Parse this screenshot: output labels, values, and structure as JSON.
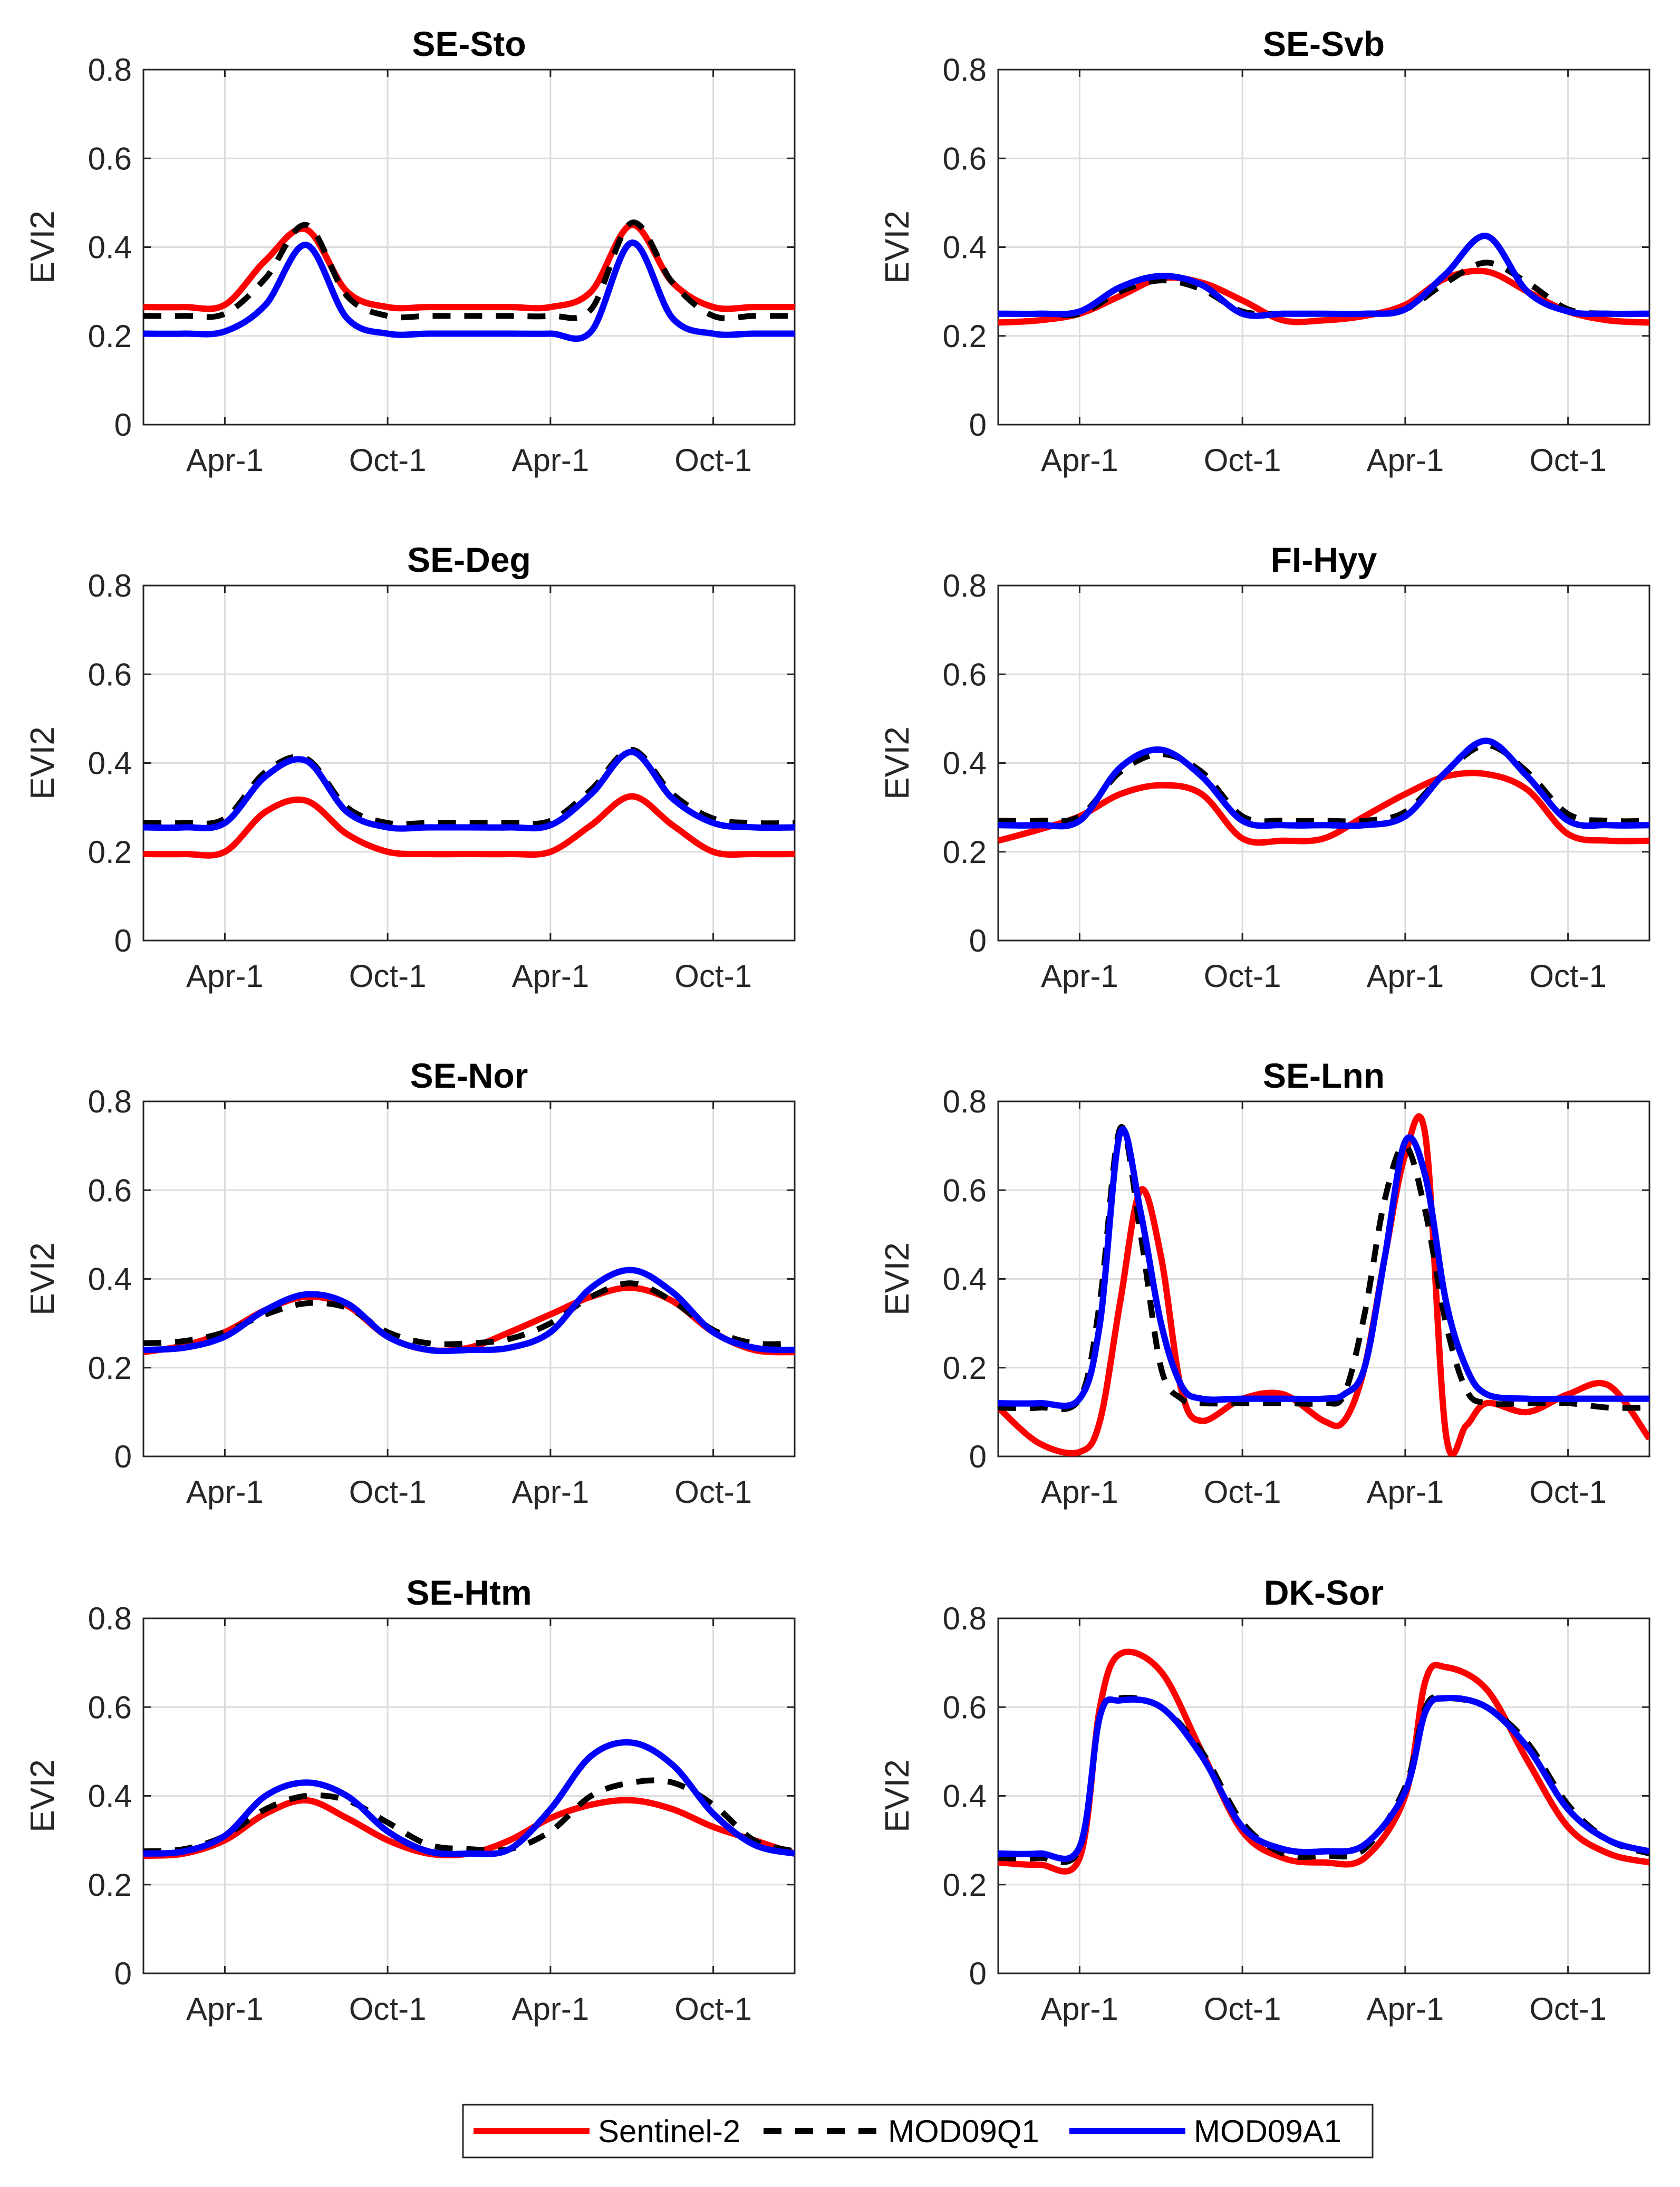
{
  "colors": {
    "sentinel": "#ff0000",
    "mod09q1": "#000000",
    "mod09a1": "#0000ff"
  },
  "legend": {
    "items": [
      "Sentinel-2",
      "MOD09Q1",
      "MOD09A1"
    ]
  },
  "chart_data": [
    {
      "type": "line",
      "title": "SE-Sto",
      "ylabel": "EVI2",
      "ylim": [
        0,
        0.8
      ],
      "yticks": [
        "0",
        "0.2",
        "0.4",
        "0.6",
        "0.8"
      ],
      "xticks": [
        "Apr-1",
        "Oct-1",
        "Apr-1",
        "Oct-1"
      ],
      "grid": true,
      "x": [
        0,
        0.25,
        0.5,
        0.75,
        1.0,
        1.25,
        1.5,
        1.75,
        2.0,
        2.25,
        2.5,
        2.75,
        3.0,
        3.25,
        3.5,
        3.75,
        4.0
      ],
      "series": [
        {
          "name": "Sentinel-2",
          "values": [
            0.265,
            0.265,
            0.27,
            0.37,
            0.44,
            0.3,
            0.265,
            0.265,
            0.265,
            0.265,
            0.265,
            0.3,
            0.45,
            0.32,
            0.265,
            0.265,
            0.265
          ]
        },
        {
          "name": "MOD09Q1",
          "values": [
            0.245,
            0.245,
            0.25,
            0.33,
            0.45,
            0.29,
            0.245,
            0.245,
            0.245,
            0.245,
            0.245,
            0.26,
            0.455,
            0.32,
            0.245,
            0.245,
            0.245
          ]
        },
        {
          "name": "MOD09A1",
          "values": [
            0.205,
            0.205,
            0.21,
            0.27,
            0.405,
            0.24,
            0.205,
            0.205,
            0.205,
            0.205,
            0.205,
            0.21,
            0.41,
            0.24,
            0.205,
            0.205,
            0.205
          ]
        }
      ]
    },
    {
      "type": "line",
      "title": "SE-Svb",
      "ylabel": "EVI2",
      "ylim": [
        0,
        0.8
      ],
      "yticks": [
        "0",
        "0.2",
        "0.4",
        "0.6",
        "0.8"
      ],
      "xticks": [
        "Apr-1",
        "Oct-1",
        "Apr-1",
        "Oct-1"
      ],
      "grid": true,
      "x": [
        0,
        0.25,
        0.5,
        0.75,
        1.0,
        1.25,
        1.5,
        1.75,
        2.0,
        2.25,
        2.5,
        2.75,
        3.0,
        3.25,
        3.5,
        3.75,
        4.0
      ],
      "series": [
        {
          "name": "Sentinel-2",
          "values": [
            0.23,
            0.235,
            0.25,
            0.29,
            0.33,
            0.32,
            0.28,
            0.235,
            0.235,
            0.245,
            0.27,
            0.33,
            0.345,
            0.3,
            0.255,
            0.235,
            0.23
          ]
        },
        {
          "name": "MOD09Q1",
          "values": [
            0.25,
            0.25,
            0.25,
            0.3,
            0.325,
            0.305,
            0.255,
            0.25,
            0.25,
            0.25,
            0.26,
            0.32,
            0.365,
            0.32,
            0.26,
            0.25,
            0.25
          ]
        },
        {
          "name": "MOD09A1",
          "values": [
            0.25,
            0.25,
            0.255,
            0.31,
            0.335,
            0.315,
            0.25,
            0.25,
            0.25,
            0.25,
            0.26,
            0.34,
            0.425,
            0.3,
            0.255,
            0.25,
            0.25
          ]
        }
      ]
    },
    {
      "type": "line",
      "title": "SE-Deg",
      "ylabel": "EVI2",
      "ylim": [
        0,
        0.8
      ],
      "yticks": [
        "0",
        "0.2",
        "0.4",
        "0.6",
        "0.8"
      ],
      "xticks": [
        "Apr-1",
        "Oct-1",
        "Apr-1",
        "Oct-1"
      ],
      "grid": true,
      "x": [
        0,
        0.25,
        0.5,
        0.75,
        1.0,
        1.25,
        1.5,
        1.75,
        2.0,
        2.25,
        2.5,
        2.75,
        3.0,
        3.25,
        3.5,
        3.75,
        4.0
      ],
      "series": [
        {
          "name": "Sentinel-2",
          "values": [
            0.195,
            0.195,
            0.2,
            0.29,
            0.315,
            0.24,
            0.2,
            0.195,
            0.195,
            0.195,
            0.2,
            0.26,
            0.325,
            0.26,
            0.2,
            0.195,
            0.195
          ]
        },
        {
          "name": "MOD09Q1",
          "values": [
            0.265,
            0.265,
            0.275,
            0.38,
            0.41,
            0.3,
            0.265,
            0.265,
            0.265,
            0.265,
            0.27,
            0.34,
            0.43,
            0.33,
            0.275,
            0.265,
            0.265
          ]
        },
        {
          "name": "MOD09A1",
          "values": [
            0.255,
            0.255,
            0.265,
            0.37,
            0.405,
            0.29,
            0.255,
            0.255,
            0.255,
            0.255,
            0.26,
            0.33,
            0.425,
            0.32,
            0.265,
            0.255,
            0.255
          ]
        }
      ]
    },
    {
      "type": "line",
      "title": "FI-Hyy",
      "ylabel": "EVI2",
      "ylim": [
        0,
        0.8
      ],
      "yticks": [
        "0",
        "0.2",
        "0.4",
        "0.6",
        "0.8"
      ],
      "xticks": [
        "Apr-1",
        "Oct-1",
        "Apr-1",
        "Oct-1"
      ],
      "grid": true,
      "x": [
        0,
        0.25,
        0.5,
        0.75,
        1.0,
        1.25,
        1.5,
        1.75,
        2.0,
        2.25,
        2.5,
        2.75,
        3.0,
        3.25,
        3.5,
        3.75,
        4.0
      ],
      "series": [
        {
          "name": "Sentinel-2",
          "values": [
            0.225,
            0.25,
            0.28,
            0.33,
            0.35,
            0.33,
            0.23,
            0.225,
            0.23,
            0.28,
            0.33,
            0.37,
            0.375,
            0.34,
            0.24,
            0.225,
            0.225
          ]
        },
        {
          "name": "MOD09Q1",
          "values": [
            0.27,
            0.27,
            0.28,
            0.38,
            0.42,
            0.38,
            0.28,
            0.27,
            0.27,
            0.27,
            0.29,
            0.38,
            0.44,
            0.38,
            0.285,
            0.27,
            0.27
          ]
        },
        {
          "name": "MOD09A1",
          "values": [
            0.26,
            0.26,
            0.27,
            0.39,
            0.43,
            0.37,
            0.27,
            0.26,
            0.26,
            0.26,
            0.28,
            0.38,
            0.45,
            0.37,
            0.27,
            0.26,
            0.26
          ]
        }
      ]
    },
    {
      "type": "line",
      "title": "SE-Nor",
      "ylabel": "EVI2",
      "ylim": [
        0,
        0.8
      ],
      "yticks": [
        "0",
        "0.2",
        "0.4",
        "0.6",
        "0.8"
      ],
      "xticks": [
        "Apr-1",
        "Oct-1",
        "Apr-1",
        "Oct-1"
      ],
      "grid": true,
      "x": [
        0,
        0.25,
        0.5,
        0.75,
        1.0,
        1.25,
        1.5,
        1.75,
        2.0,
        2.25,
        2.5,
        2.75,
        3.0,
        3.25,
        3.5,
        3.75,
        4.0
      ],
      "series": [
        {
          "name": "Sentinel-2",
          "values": [
            0.235,
            0.25,
            0.28,
            0.33,
            0.36,
            0.34,
            0.27,
            0.24,
            0.245,
            0.28,
            0.32,
            0.36,
            0.38,
            0.35,
            0.28,
            0.24,
            0.235
          ]
        },
        {
          "name": "MOD09Q1",
          "values": [
            0.255,
            0.26,
            0.28,
            0.32,
            0.345,
            0.335,
            0.28,
            0.255,
            0.255,
            0.265,
            0.3,
            0.36,
            0.39,
            0.35,
            0.285,
            0.255,
            0.255
          ]
        },
        {
          "name": "MOD09A1",
          "values": [
            0.24,
            0.245,
            0.27,
            0.33,
            0.365,
            0.345,
            0.27,
            0.24,
            0.24,
            0.245,
            0.28,
            0.38,
            0.42,
            0.37,
            0.28,
            0.245,
            0.24
          ]
        }
      ]
    },
    {
      "type": "line",
      "title": "SE-Lnn",
      "ylabel": "EVI2",
      "ylim": [
        0,
        0.8
      ],
      "yticks": [
        "0",
        "0.2",
        "0.4",
        "0.6",
        "0.8"
      ],
      "xticks": [
        "Apr-1",
        "Oct-1",
        "Apr-1",
        "Oct-1"
      ],
      "grid": true,
      "x": [
        0,
        0.25,
        0.5,
        0.625,
        0.75,
        0.875,
        1.0,
        1.125,
        1.25,
        1.5,
        1.75,
        2.0,
        2.125,
        2.25,
        2.375,
        2.5,
        2.625,
        2.75,
        2.875,
        3.0,
        3.25,
        3.5,
        3.75,
        4.0
      ],
      "series": [
        {
          "name": "Sentinel-2",
          "values": [
            0.11,
            0.03,
            0.01,
            0.08,
            0.35,
            0.6,
            0.45,
            0.15,
            0.08,
            0.13,
            0.14,
            0.08,
            0.08,
            0.2,
            0.45,
            0.68,
            0.72,
            0.05,
            0.07,
            0.12,
            0.1,
            0.14,
            0.16,
            0.04
          ]
        },
        {
          "name": "MOD09Q1",
          "values": [
            0.11,
            0.11,
            0.13,
            0.35,
            0.74,
            0.5,
            0.2,
            0.13,
            0.12,
            0.12,
            0.12,
            0.12,
            0.14,
            0.32,
            0.58,
            0.7,
            0.55,
            0.3,
            0.15,
            0.12,
            0.12,
            0.12,
            0.11,
            0.11
          ]
        },
        {
          "name": "MOD09A1",
          "values": [
            0.12,
            0.12,
            0.13,
            0.3,
            0.73,
            0.55,
            0.3,
            0.16,
            0.13,
            0.13,
            0.13,
            0.13,
            0.14,
            0.2,
            0.45,
            0.71,
            0.63,
            0.35,
            0.2,
            0.14,
            0.13,
            0.13,
            0.13,
            0.13
          ]
        }
      ]
    },
    {
      "type": "line",
      "title": "SE-Htm",
      "ylabel": "EVI2",
      "ylim": [
        0,
        0.8
      ],
      "yticks": [
        "0",
        "0.2",
        "0.4",
        "0.6",
        "0.8"
      ],
      "xticks": [
        "Apr-1",
        "Oct-1",
        "Apr-1",
        "Oct-1"
      ],
      "grid": true,
      "x": [
        0,
        0.25,
        0.5,
        0.75,
        1.0,
        1.25,
        1.5,
        1.75,
        2.0,
        2.25,
        2.5,
        2.75,
        3.0,
        3.25,
        3.5,
        3.75,
        4.0
      ],
      "series": [
        {
          "name": "Sentinel-2",
          "values": [
            0.265,
            0.27,
            0.3,
            0.36,
            0.39,
            0.35,
            0.3,
            0.27,
            0.27,
            0.3,
            0.35,
            0.38,
            0.39,
            0.37,
            0.33,
            0.3,
            0.27
          ]
        },
        {
          "name": "MOD09Q1",
          "values": [
            0.275,
            0.28,
            0.31,
            0.37,
            0.4,
            0.39,
            0.34,
            0.29,
            0.28,
            0.28,
            0.32,
            0.4,
            0.43,
            0.43,
            0.38,
            0.3,
            0.275
          ]
        },
        {
          "name": "MOD09A1",
          "values": [
            0.27,
            0.275,
            0.31,
            0.4,
            0.43,
            0.4,
            0.32,
            0.275,
            0.27,
            0.28,
            0.37,
            0.49,
            0.52,
            0.47,
            0.36,
            0.29,
            0.27
          ]
        }
      ]
    },
    {
      "type": "line",
      "title": "DK-Sor",
      "ylabel": "EVI2",
      "ylim": [
        0,
        0.8
      ],
      "yticks": [
        "0",
        "0.2",
        "0.4",
        "0.6",
        "0.8"
      ],
      "xticks": [
        "Apr-1",
        "Oct-1",
        "Apr-1",
        "Oct-1"
      ],
      "grid": true,
      "x": [
        0,
        0.25,
        0.5,
        0.625,
        0.75,
        1.0,
        1.25,
        1.5,
        1.75,
        2.0,
        2.25,
        2.5,
        2.625,
        2.75,
        3.0,
        3.25,
        3.5,
        3.75,
        4.0
      ],
      "series": [
        {
          "name": "Sentinel-2",
          "values": [
            0.25,
            0.245,
            0.26,
            0.6,
            0.72,
            0.68,
            0.5,
            0.32,
            0.26,
            0.25,
            0.26,
            0.4,
            0.66,
            0.69,
            0.64,
            0.48,
            0.33,
            0.27,
            0.25
          ]
        },
        {
          "name": "MOD09Q1",
          "values": [
            0.26,
            0.26,
            0.28,
            0.58,
            0.62,
            0.6,
            0.5,
            0.34,
            0.27,
            0.265,
            0.28,
            0.42,
            0.6,
            0.62,
            0.6,
            0.52,
            0.38,
            0.3,
            0.27
          ]
        },
        {
          "name": "MOD09A1",
          "values": [
            0.27,
            0.27,
            0.285,
            0.58,
            0.615,
            0.6,
            0.49,
            0.33,
            0.28,
            0.275,
            0.29,
            0.41,
            0.59,
            0.62,
            0.6,
            0.51,
            0.37,
            0.3,
            0.275
          ]
        }
      ]
    }
  ]
}
